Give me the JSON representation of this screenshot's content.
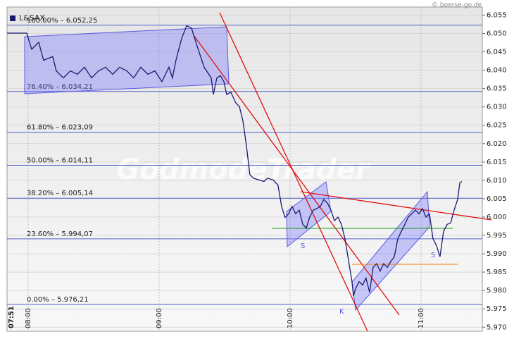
{
  "chart_data": {
    "type": "line",
    "title": "L&SAX",
    "source": "© boerse-go.de",
    "watermark": "GodmodeTrader",
    "start_label": "07:51",
    "xlim": [
      7.839,
      11.468
    ],
    "xticks": [
      {
        "value": 8,
        "label": "08:00"
      },
      {
        "value": 9,
        "label": "09:00"
      },
      {
        "value": 10,
        "label": "10:00"
      },
      {
        "value": 11,
        "label": "11:00"
      }
    ],
    "ylim": [
      5.9689,
      6.0572
    ],
    "yticks": [
      {
        "value": 5.97,
        "label": "5.970"
      },
      5.975,
      {
        "value": 5.98,
        "label": "5.980"
      },
      5.985,
      {
        "value": 5.99,
        "label": "5.990"
      },
      5.995,
      {
        "value": 6.0,
        "label": "6.000"
      },
      6.005,
      {
        "value": 6.01,
        "label": "6.010"
      },
      6.015,
      {
        "value": 6.02,
        "label": "6.020"
      },
      6.025,
      {
        "value": 6.03,
        "label": "6.030"
      },
      6.035,
      {
        "value": 6.04,
        "label": "6.040"
      },
      6.045,
      {
        "value": 6.05,
        "label": "6.050"
      },
      6.055
    ],
    "grid": true,
    "fib_levels": [
      {
        "label": "100.00% – 6.052,25",
        "value": 6.05225
      },
      {
        "label": "76.40% – 6.034,21",
        "value": 6.03421
      },
      {
        "label": "61.80% – 6.023,09",
        "value": 6.02309
      },
      {
        "label": "50.00% – 6.014,11",
        "value": 6.01411
      },
      {
        "label": "38.20% – 6.005,14",
        "value": 6.00514
      },
      {
        "label": "23.60% – 5.994,07",
        "value": 5.99407
      },
      {
        "label": "0.00% – 5.976,21",
        "value": 5.97621
      }
    ],
    "annotations": [
      "S",
      "K",
      "S"
    ],
    "series": [
      {
        "name": "L&SAX",
        "color": "#1a1a70",
        "x": [
          7.839,
          7.989,
          8.027,
          8.081,
          8.118,
          8.188,
          8.215,
          8.269,
          8.323,
          8.376,
          8.43,
          8.484,
          8.538,
          8.591,
          8.645,
          8.699,
          8.753,
          8.806,
          8.86,
          8.914,
          8.968,
          9.021,
          9.075,
          9.102,
          9.129,
          9.172,
          9.21,
          9.247,
          9.29,
          9.344,
          9.398,
          9.414,
          9.441,
          9.468,
          9.495,
          9.516,
          9.548,
          9.586,
          9.613,
          9.64,
          9.667,
          9.693,
          9.72,
          9.763,
          9.801,
          9.828,
          9.871,
          9.908,
          9.935,
          9.962,
          9.989,
          10.016,
          10.043,
          10.07,
          10.097,
          10.124,
          10.15,
          10.177,
          10.204,
          10.231,
          10.258,
          10.285,
          10.312,
          10.339,
          10.366,
          10.392,
          10.419,
          10.446,
          10.473,
          10.484,
          10.5,
          10.527,
          10.554,
          10.58,
          10.607,
          10.634,
          10.661,
          10.688,
          10.715,
          10.742,
          10.769,
          10.796,
          10.823,
          10.849,
          10.876,
          10.903,
          10.93,
          10.957,
          10.984,
          11.011,
          11.038,
          11.065,
          11.091,
          11.118,
          11.145,
          11.172,
          11.199,
          11.226,
          11.253,
          11.28,
          11.296,
          11.312
        ],
        "values": [
          6.0501,
          6.0501,
          6.0457,
          6.0476,
          6.0427,
          6.0437,
          6.0398,
          6.0379,
          6.0398,
          6.0389,
          6.0408,
          6.0379,
          6.0398,
          6.0408,
          6.0389,
          6.0408,
          6.0398,
          6.0379,
          6.0408,
          6.0389,
          6.0398,
          6.0369,
          6.0408,
          6.0379,
          6.0427,
          6.0486,
          6.0521,
          6.0515,
          6.0466,
          6.0408,
          6.0379,
          6.0334,
          6.0379,
          6.0385,
          6.0369,
          6.0334,
          6.034,
          6.0311,
          6.0301,
          6.0262,
          6.0194,
          6.0116,
          6.0106,
          6.0101,
          6.0097,
          6.0106,
          6.0101,
          6.0087,
          6.0029,
          5.9999,
          6.0009,
          6.0029,
          6.0009,
          6.0019,
          5.998,
          5.997,
          6.0,
          6.0019,
          6.0023,
          6.0029,
          6.0048,
          6.0038,
          6.0019,
          5.999,
          6.0,
          5.998,
          5.9941,
          5.9883,
          5.9824,
          5.9785,
          5.9805,
          5.9824,
          5.9815,
          5.9834,
          5.9795,
          5.9863,
          5.9873,
          5.9853,
          5.9873,
          5.9863,
          5.9879,
          5.9892,
          5.9941,
          5.9961,
          5.998,
          6.0,
          6.0009,
          6.0019,
          6.0009,
          6.0023,
          6.0,
          6.0009,
          5.9941,
          5.9922,
          5.9892,
          5.9961,
          5.998,
          5.9984,
          6.0019,
          6.0048,
          6.0093,
          6.0097
        ]
      }
    ]
  }
}
